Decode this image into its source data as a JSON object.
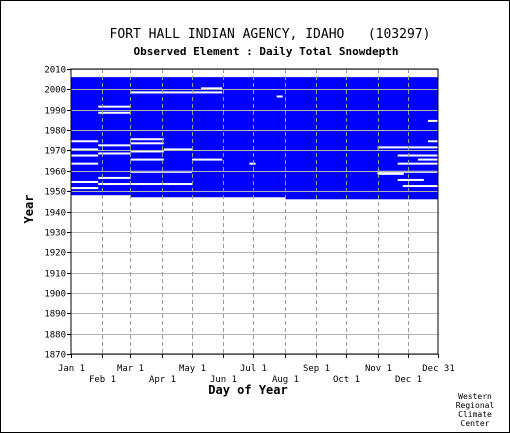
{
  "chart_data": {
    "type": "heatmap",
    "title": "FORT HALL INDIAN AGENCY, IDAHO   (103297)",
    "subtitle": "Observed Element : Daily Total Snowdepth",
    "xlabel": "Day of Year",
    "ylabel": "Year",
    "xlim": [
      1,
      365
    ],
    "ylim": [
      1870,
      2010
    ],
    "x_ticks_upper": [
      {
        "label": "Jan 1",
        "day": 1
      },
      {
        "label": "Mar 1",
        "day": 60
      },
      {
        "label": "May 1",
        "day": 121
      },
      {
        "label": "Jul 1",
        "day": 182
      },
      {
        "label": "Sep 1",
        "day": 244
      },
      {
        "label": "Nov 1",
        "day": 305
      },
      {
        "label": "Dec 31",
        "day": 365
      }
    ],
    "x_ticks_lower": [
      {
        "label": "Feb 1",
        "day": 32
      },
      {
        "label": "Apr 1",
        "day": 91
      },
      {
        "label": "Jun 1",
        "day": 152
      },
      {
        "label": "Aug 1",
        "day": 213
      },
      {
        "label": "Oct 1",
        "day": 274
      },
      {
        "label": "Dec 1",
        "day": 335
      }
    ],
    "y_ticks": [
      1870,
      1880,
      1890,
      1900,
      1910,
      1920,
      1930,
      1940,
      1950,
      1960,
      1970,
      1980,
      1990,
      2000,
      2010
    ],
    "gridlines": true,
    "fill_color": "#0000ff",
    "missing_color": "#ffffff",
    "data_regions": [
      {
        "name": "Jan-Feb",
        "day_start": 1,
        "day_end": 59,
        "year_start": 1948,
        "year_end": 2005
      },
      {
        "name": "Mar-Jul",
        "day_start": 60,
        "day_end": 213,
        "year_start": 1947,
        "year_end": 2005
      },
      {
        "name": "Aug-Dec",
        "day_start": 214,
        "day_end": 365,
        "year_start": 1946,
        "year_end": 2005
      }
    ],
    "missing_gaps": [
      {
        "day_start": 1,
        "day_end": 27,
        "year": 1974
      },
      {
        "day_start": 1,
        "day_end": 27,
        "year": 1970
      },
      {
        "day_start": 1,
        "day_end": 27,
        "year": 1967
      },
      {
        "day_start": 1,
        "day_end": 27,
        "year": 1963
      },
      {
        "day_start": 1,
        "day_end": 27,
        "year": 1954
      },
      {
        "day_start": 1,
        "day_end": 27,
        "year": 1951
      },
      {
        "day_start": 28,
        "day_end": 59,
        "year": 1991
      },
      {
        "day_start": 28,
        "day_end": 59,
        "year": 1988
      },
      {
        "day_start": 28,
        "day_end": 59,
        "year": 1972
      },
      {
        "day_start": 28,
        "day_end": 59,
        "year": 1968
      },
      {
        "day_start": 28,
        "day_end": 59,
        "year": 1956
      },
      {
        "day_start": 28,
        "day_end": 59,
        "year": 1953
      },
      {
        "day_start": 60,
        "day_end": 92,
        "year": 1998
      },
      {
        "day_start": 60,
        "day_end": 92,
        "year": 1975
      },
      {
        "day_start": 60,
        "day_end": 92,
        "year": 1973
      },
      {
        "day_start": 60,
        "day_end": 92,
        "year": 1969
      },
      {
        "day_start": 60,
        "day_end": 92,
        "year": 1965
      },
      {
        "day_start": 60,
        "day_end": 120,
        "year": 1959
      },
      {
        "day_start": 60,
        "day_end": 120,
        "year": 1953
      },
      {
        "day_start": 60,
        "day_end": 150,
        "year": 1998
      },
      {
        "day_start": 93,
        "day_end": 120,
        "year": 1970
      },
      {
        "day_start": 121,
        "day_end": 150,
        "year": 1965
      },
      {
        "day_start": 130,
        "day_end": 150,
        "year": 2000
      },
      {
        "day_start": 178,
        "day_end": 183,
        "year": 1963
      },
      {
        "day_start": 205,
        "day_end": 210,
        "year": 1996
      },
      {
        "day_start": 305,
        "day_end": 365,
        "year": 1971
      },
      {
        "day_start": 305,
        "day_end": 365,
        "year": 1959
      },
      {
        "day_start": 305,
        "day_end": 330,
        "year": 1958
      },
      {
        "day_start": 325,
        "day_end": 365,
        "year": 1967
      },
      {
        "day_start": 325,
        "day_end": 365,
        "year": 1963
      },
      {
        "day_start": 325,
        "day_end": 350,
        "year": 1955
      },
      {
        "day_start": 330,
        "day_end": 365,
        "year": 1952
      },
      {
        "day_start": 345,
        "day_end": 365,
        "year": 1965
      },
      {
        "day_start": 355,
        "day_end": 365,
        "year": 1974
      },
      {
        "day_start": 355,
        "day_end": 365,
        "year": 1984
      }
    ]
  },
  "credit": [
    "Western",
    "Regional",
    "Climate",
    "Center"
  ]
}
